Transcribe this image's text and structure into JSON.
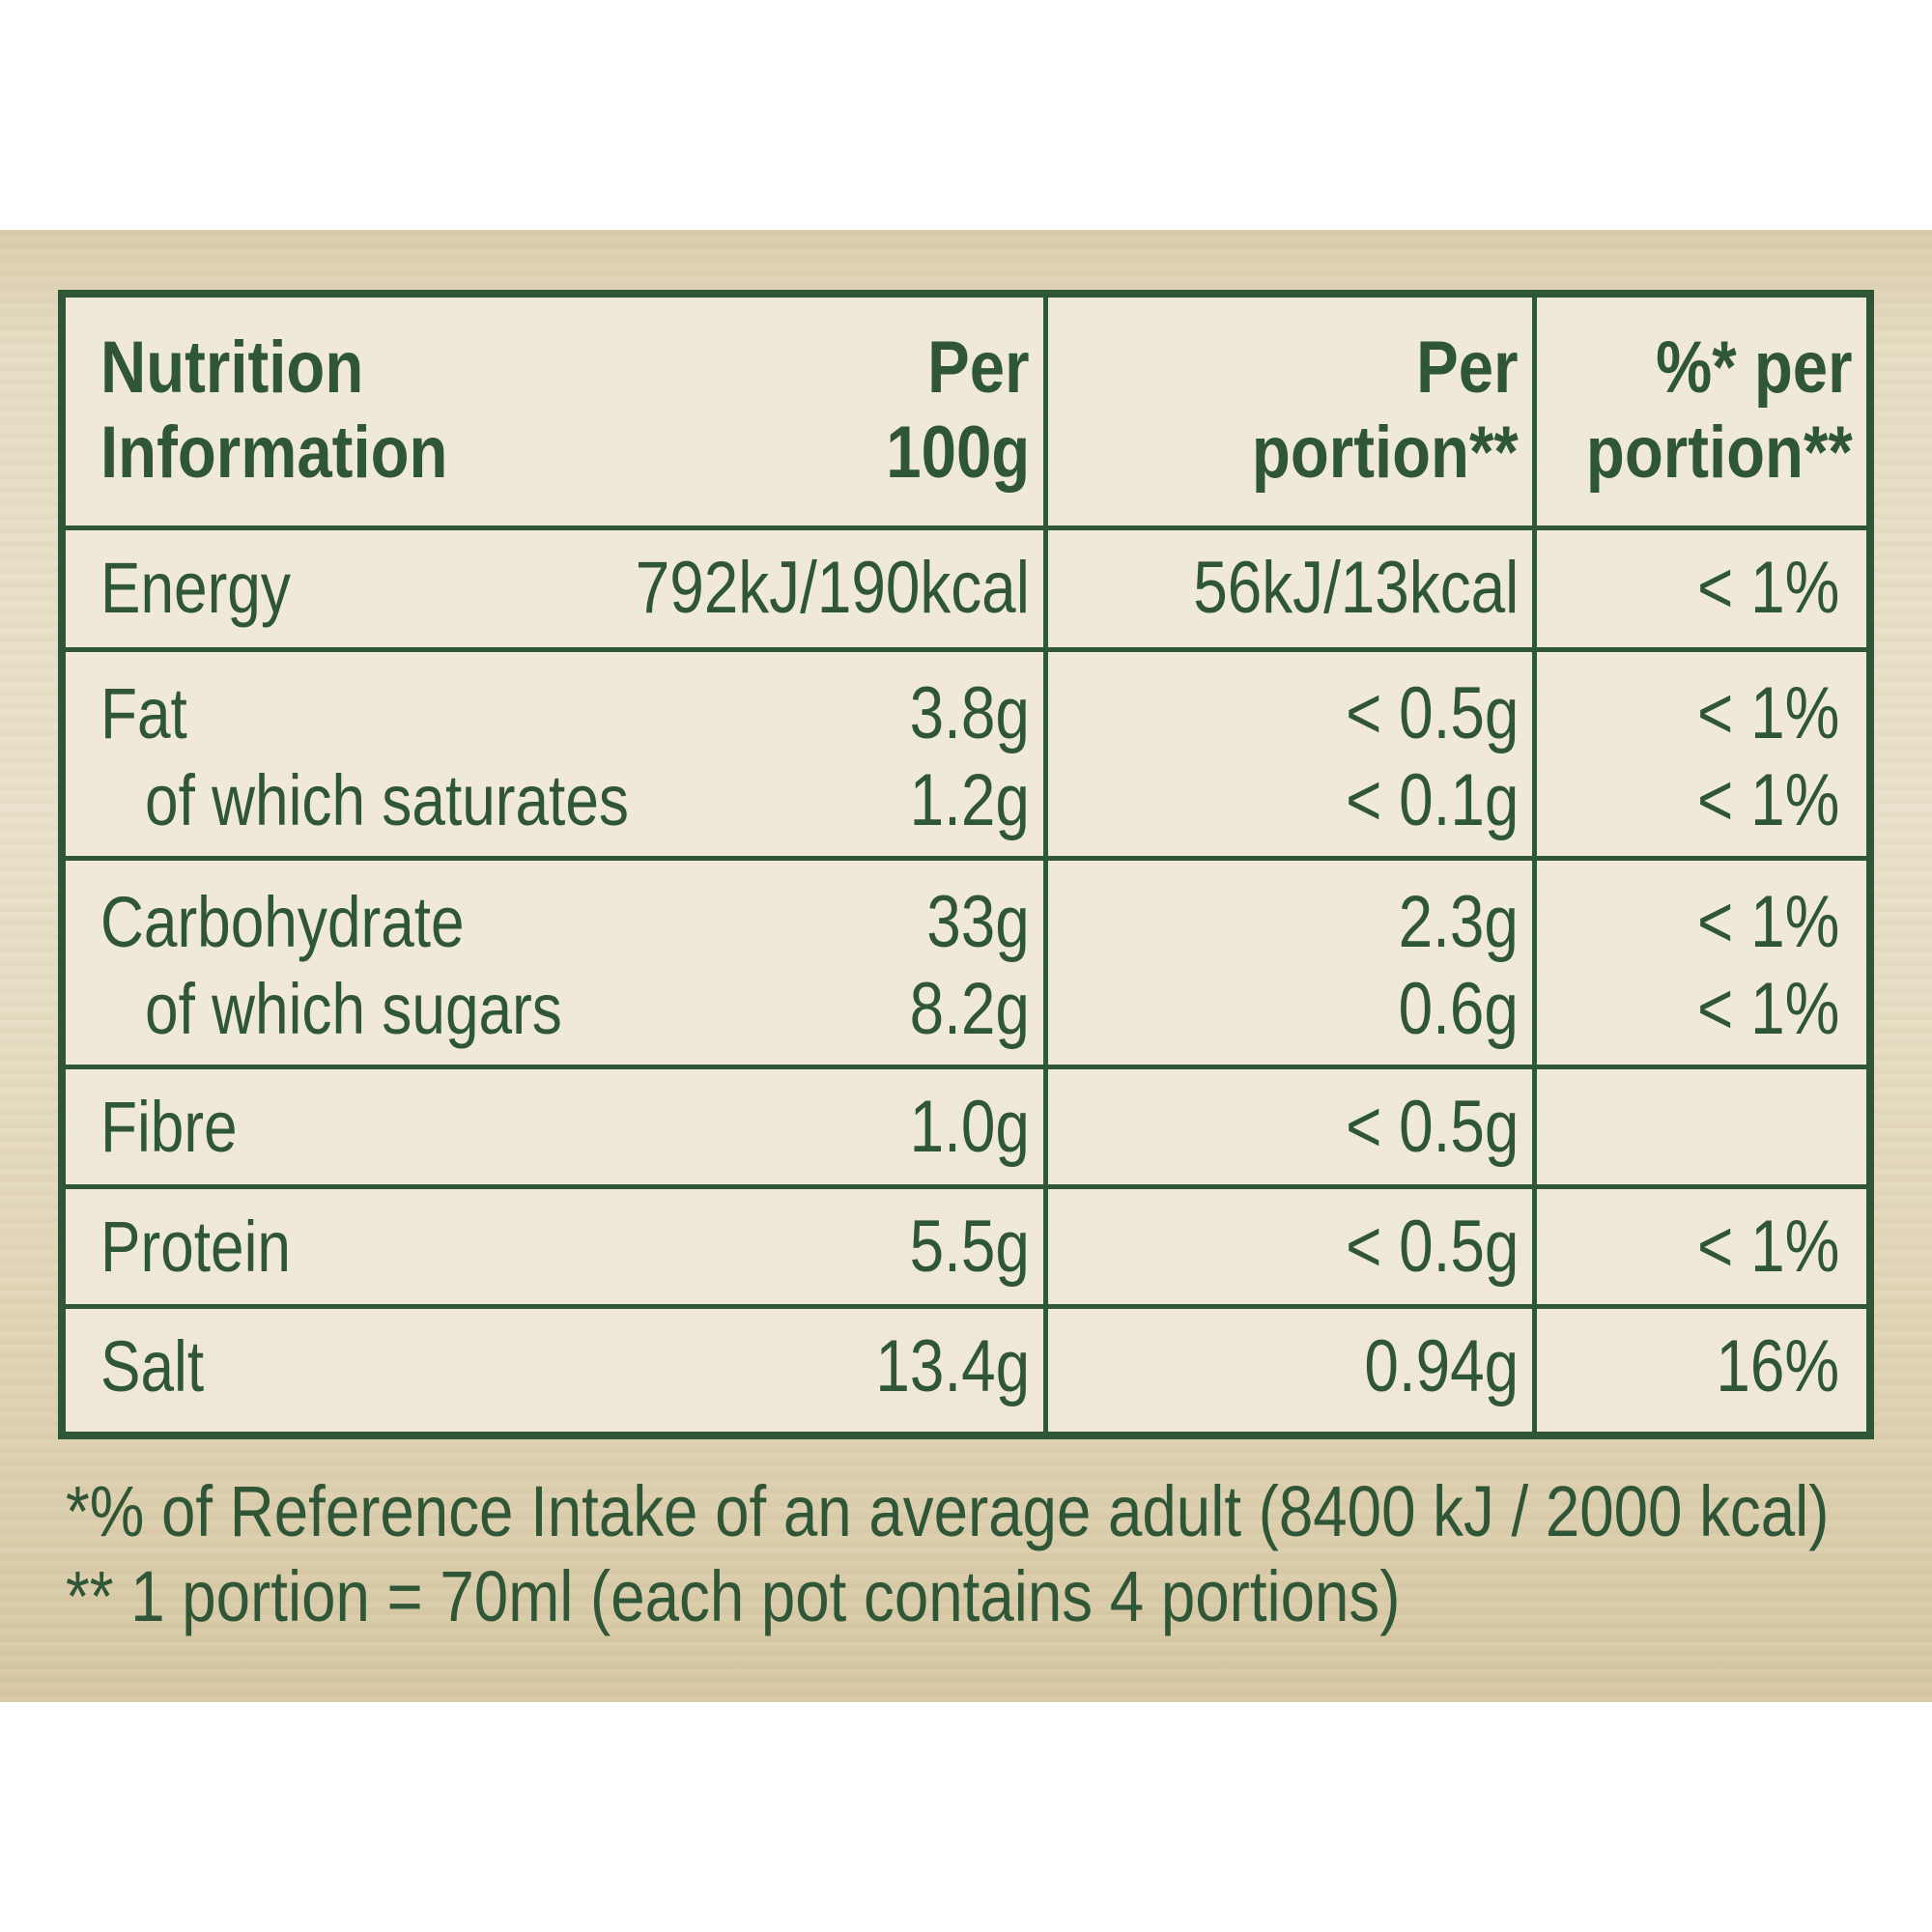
{
  "table": {
    "header": {
      "col1_line1": "Nutrition",
      "col1_line2": "Information",
      "col2_line1": "Per",
      "col2_line2": "100g",
      "col3_line1": "Per",
      "col3_line2": "portion**",
      "col4_line1": "%* per",
      "col4_line2": "portion**"
    },
    "rows": [
      {
        "label": "Energy",
        "per100g": "792kJ/190kcal",
        "perPortion": "56kJ/13kcal",
        "ri": "< 1%"
      },
      {
        "label": "Fat",
        "per100g": "3.8g",
        "perPortion": "< 0.5g",
        "ri": "< 1%"
      },
      {
        "label": "of which saturates",
        "per100g": "1.2g",
        "perPortion": "< 0.1g",
        "ri": "< 1%"
      },
      {
        "label": "Carbohydrate",
        "per100g": "33g",
        "perPortion": "2.3g",
        "ri": "< 1%"
      },
      {
        "label": "of which sugars",
        "per100g": "8.2g",
        "perPortion": "0.6g",
        "ri": "< 1%"
      },
      {
        "label": "Fibre",
        "per100g": "1.0g",
        "perPortion": "< 0.5g",
        "ri": ""
      },
      {
        "label": "Protein",
        "per100g": "5.5g",
        "perPortion": "< 0.5g",
        "ri": "< 1%"
      },
      {
        "label": "Salt",
        "per100g": "13.4g",
        "perPortion": "0.94g",
        "ri": "16%"
      }
    ]
  },
  "footnotes": {
    "reference_intake": "*% of Reference Intake of an average adult (8400 kJ / 2000 kcal)",
    "portion": "** 1 portion = 70ml (each pot contains 4 portions)"
  },
  "colors": {
    "text_green": "#2f5636",
    "background_beige": "#e9e0c9"
  }
}
